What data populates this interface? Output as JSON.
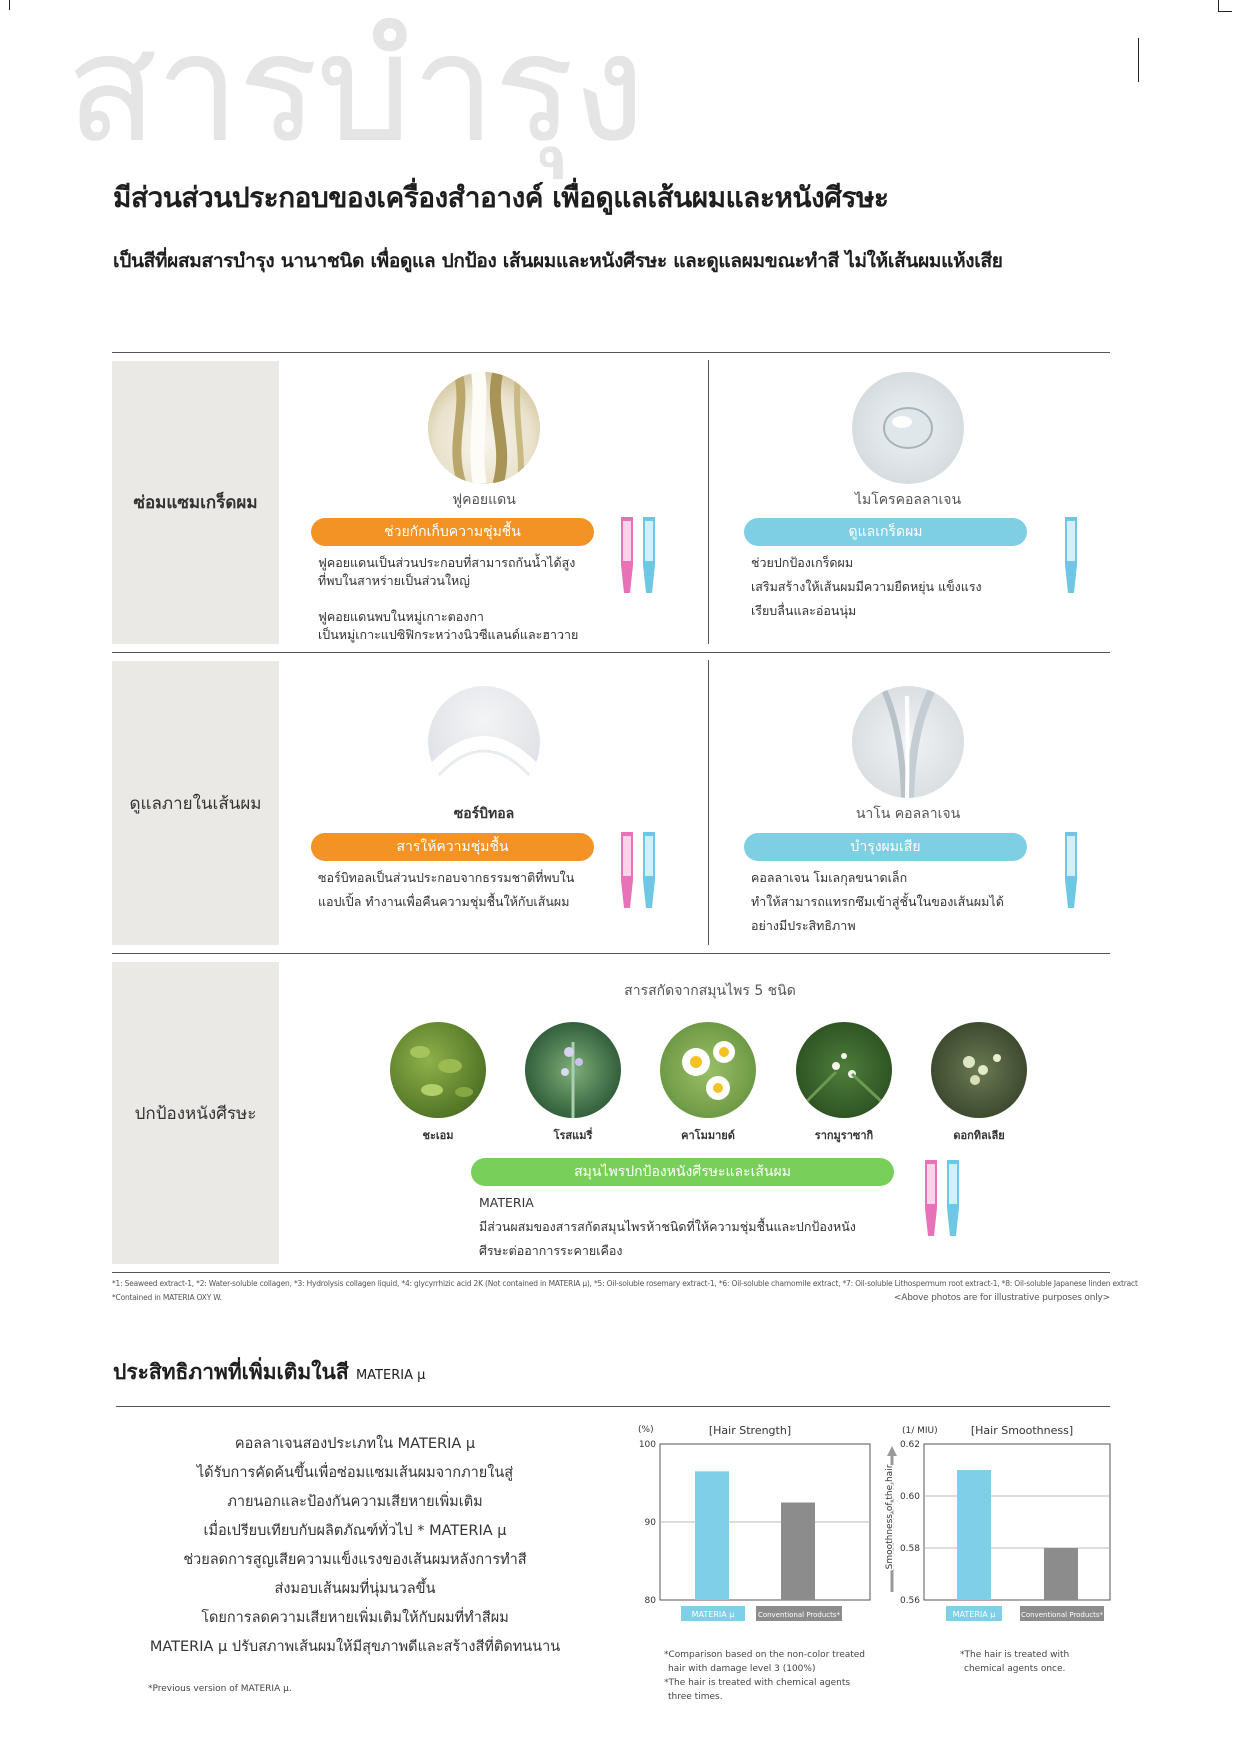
{
  "header": {
    "bg_title": "สารบำรุง",
    "headline": "มีส่วนส่วนประกอบของเครื่องสำอางค์ เพื่อดูแลเส้นผมและหนังศีรษะ",
    "subline": "เป็นสีที่ผสมสารบำรุง นานาชนิด เพื่อดูแล ปกป้อง เส้นผมและหนังศีรษะ และดูแลผมขณะทำสี ไม่ให้เส้นผมแห้งเสีย"
  },
  "rows": [
    {
      "label": "ซ่อมแซมเกร็ดผม",
      "items": [
        {
          "name": "ฟูคอยแดน",
          "pill": "ช่วยกักเก็บความชุ่มชื้น",
          "desc": [
            "ฟูคอยแดนเป็นส่วนประกอบที่สามารถกันน้ำได้สูง",
            "ที่พบในสาหร่ายเป็นส่วนใหญ่",
            "",
            "ฟูคอยแดนพบในหมู่เกาะตองกา",
            "เป็นหมู่เกาะแปซิฟิกระหว่างนิวซีแลนด์และฮาวาย"
          ]
        },
        {
          "name": "ไมโครคอลลาเจน",
          "pill": "ดูแลเกร็ดผม",
          "desc": [
            "ช่วยปกป้องเกร็ดผม",
            "เสริมสร้างให้เส้นผมมีความยืดหยุ่น แข็งแรง",
            "เรียบลื่นและอ่อนนุ่ม"
          ]
        }
      ]
    },
    {
      "label": "ดูแลภายในเส้นผม",
      "items": [
        {
          "name": "ซอร์บิทอล",
          "pill": "สารให้ความชุ่มชื้น",
          "desc": [
            "ซอร์บิทอลเป็นส่วนประกอบจากธรรมชาติที่พบใน",
            "แอปเปิ้ล ทำงานเพื่อคืนความชุ่มชื้นให้กับเส้นผม"
          ]
        },
        {
          "name": "นาโน คอลลาเจน",
          "pill": "บำรุงผมเสีย",
          "desc": [
            "คอลลาเจน โมเลกุลขนาดเล็ก",
            "ทำให้สามารถแทรกซึมเข้าสู่ชั้นในของเส้นผมได้",
            "อย่างมีประสิทธิภาพ"
          ]
        }
      ]
    },
    {
      "label": "ปกป้องหนังศีรษะ",
      "herbs_title": "สารสกัดจากสมุนไพร 5 ชนิด",
      "herbs": [
        "ชะเอม",
        "โรสแมรี่",
        "คาโมมายด์",
        "รากมูราซากิ",
        "ดอกทิลเลีย"
      ],
      "pill": "สมุนไพรปกป้องหนังศีรษะและเส้นผม",
      "desc": [
        "MATERIA",
        "มีส่วนผสมของสารสกัดสมุนไพรห้าชนิดที่ให้ความชุ่มชื้นและปกป้องหนัง",
        "ศีรษะต่ออาการระคายเคือง"
      ]
    }
  ],
  "footnotes": {
    "line1": "*1: Seaweed extract-1, *2: Water-soluble collagen, *3: Hydrolysis collagen liquid, *4: glycyrrhizic acid 2K (Not contained in MATERIA μ), *5: Oil-soluble rosemary extract-1, *6: Oil-soluble chamomile extract, *7: Oil-soluble Lithospermum root extract-1, *8: Oil-soluble Japanese linden extract",
    "line2": "*Contained in MATERIA OXY W.",
    "photos": "<Above photos are for illustrative purposes only>"
  },
  "section2": {
    "title": "ประสิทธิภาพที่เพิ่มเติมในสี",
    "title_small": "MATERIA μ",
    "body": [
      "คอลลาเจนสองประเภทใน MATERIA μ",
      "ได้รับการคัดค้นขึ้นเพื่อซ่อมแซมเส้นผมจากภายในสู่",
      "ภายนอกและป้องกันความเสียหายเพิ่มเติม",
      "เมื่อเปรียบเทียบกับผลิตภัณฑ์ทั่วไป * MATERIA μ",
      "ช่วยลดการสูญเสียความแข็งแรงของเส้นผมหลังการทำสี",
      "ส่งมอบเส้นผมที่นุ่มนวลขึ้น",
      "โดยการลดความเสียหายเพิ่มเติมให้กับผมที่ทำสีผม",
      "MATERIA μ ปรับสภาพเส้นผมให้มีสุขภาพดีและสร้างสีที่ติดทนนาน"
    ],
    "footnote": "*Previous version of MATERIA μ."
  },
  "chart_data": [
    {
      "type": "bar",
      "title": "[Hair Strength]",
      "ylabel": "(%)",
      "categories": [
        "MATERIA μ",
        "Conventional Products*"
      ],
      "values": [
        96.5,
        92.5
      ],
      "ylim": [
        80,
        100
      ],
      "yticks": [
        "80",
        "90",
        "100"
      ],
      "colors": [
        "#7fcfe9",
        "#8c8c8c"
      ],
      "notes": [
        "*Comparison based on the non-color treated",
        "hair with damage level 3 (100%)",
        "*The hair is treated with chemical agents",
        "three times."
      ]
    },
    {
      "type": "bar",
      "title": "[Hair Smoothness]",
      "ylabel": "(1/ MIU)",
      "axis_label": "Smoothness of the hair",
      "categories": [
        "MATERIA μ",
        "Conventional Products*"
      ],
      "values": [
        0.61,
        0.58
      ],
      "ylim": [
        0.56,
        0.62
      ],
      "yticks": [
        "0.56",
        "0.58",
        "0.60",
        "0.62"
      ],
      "colors": [
        "#7fcfe9",
        "#8c8c8c"
      ],
      "notes": [
        "*The hair is treated with",
        "chemical agents once."
      ]
    }
  ]
}
